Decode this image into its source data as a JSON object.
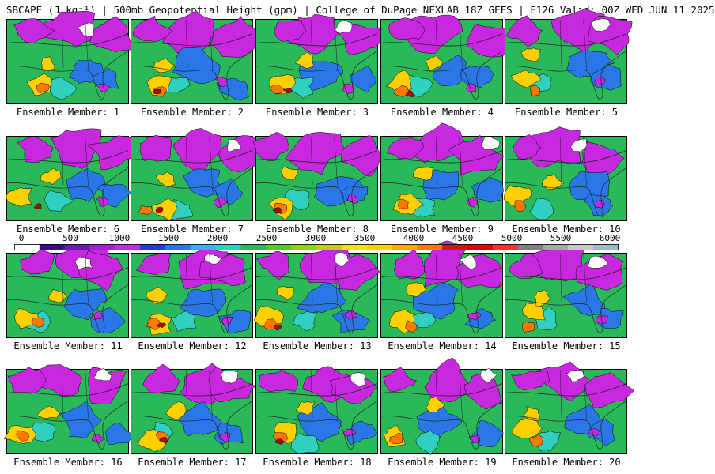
{
  "title": "SBCAPE (J kg⁻¹) | 500mb Geopotential Height (gpm) | College of DuPage NEXLAB 18Z GEFS | F126 Valid: 00Z WED JUN 11 2025",
  "members": [
    "Ensemble Member: 1",
    "Ensemble Member: 2",
    "Ensemble Member: 3",
    "Ensemble Member: 4",
    "Ensemble Member: 5",
    "Ensemble Member: 6",
    "Ensemble Member: 7",
    "Ensemble Member: 8",
    "Ensemble Member: 9",
    "Ensemble Member: 10",
    "Ensemble Member: 11",
    "Ensemble Member: 12",
    "Ensemble Member: 13",
    "Ensemble Member: 14",
    "Ensemble Member: 15",
    "Ensemble Member: 16",
    "Ensemble Member: 17",
    "Ensemble Member: 18",
    "Ensemble Member: 19",
    "Ensemble Member: 20"
  ],
  "colorbar": {
    "ticks": [
      "0",
      "500",
      "1000",
      "1500",
      "2000",
      "2500",
      "3000",
      "3500",
      "4000",
      "4500",
      "5000",
      "5500",
      "6000"
    ],
    "colors": [
      "#ffffff",
      "#3b0a87",
      "#6a1aa6",
      "#a020d0",
      "#c828e0",
      "#1e3fd0",
      "#2a78e8",
      "#3bb0f0",
      "#30d0c0",
      "#2ab85a",
      "#58c828",
      "#8cd020",
      "#c8c818",
      "#f0e020",
      "#ffd000",
      "#ffa800",
      "#ff7800",
      "#c02000",
      "#e00000",
      "#ff3030",
      "#808080",
      "#a8a8a8",
      "#c8c8c8",
      "#a0b8c8"
    ]
  },
  "fields": {
    "base_color": "#2ab85a",
    "cape_colors": {
      "very_low": "#c828e0",
      "low": "#2a78e8",
      "moderate": "#30d0c0",
      "high": "#ffd000",
      "very_high": "#ff7800",
      "extreme": "#a01010",
      "zero": "#ffffff"
    }
  }
}
